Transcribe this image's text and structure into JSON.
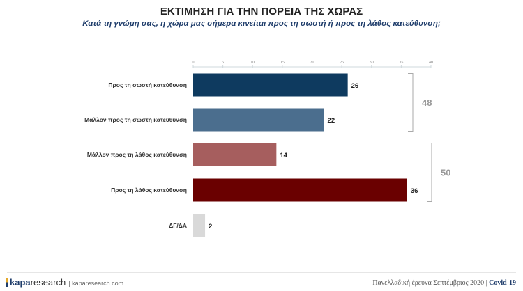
{
  "header": {
    "title": "ΕΚΤΙΜΗΣΗ ΓΙΑ ΤΗΝ ΠΟΡΕΙΑ ΤΗΣ ΧΩΡΑΣ",
    "subtitle": "Κατά τη γνώμη σας, η χώρα μας σήμερα κινείται προς τη σωστή ή προς τη λάθος κατεύθυνση;"
  },
  "chart_data": {
    "type": "bar",
    "orientation": "horizontal",
    "title": "ΕΚΤΙΜΗΣΗ ΓΙΑ ΤΗΝ ΠΟΡΕΙΑ ΤΗΣ ΧΩΡΑΣ",
    "categories": [
      "Προς τη σωστή κατεύθυνση",
      "Μάλλον προς τη σωστή κατεύθυνση",
      "Μάλλον προς τη λάθος κατεύθυνση",
      "Προς τη λάθος κατεύθυνση",
      "ΔΓ/ΔΑ"
    ],
    "values": [
      26,
      22,
      14,
      36,
      2
    ],
    "colors": [
      "#0e3a5f",
      "#4b6e8e",
      "#a65e5e",
      "#6a0000",
      "#d9d9d9"
    ],
    "xlim": [
      0,
      40
    ],
    "xticks": [
      0,
      5,
      10,
      15,
      20,
      25,
      30,
      35,
      40
    ],
    "axis_position": "top",
    "grid": false,
    "groups": [
      {
        "label": "48",
        "from": 0,
        "to": 1
      },
      {
        "label": "50",
        "from": 2,
        "to": 3
      }
    ]
  },
  "footer": {
    "brand_bold": "kapa",
    "brand_light": "research",
    "site": "kaparesearch.com",
    "note": "Πανελλαδική έρευνα Σεπτέμβριος 2020",
    "tag": "Covid-19"
  }
}
